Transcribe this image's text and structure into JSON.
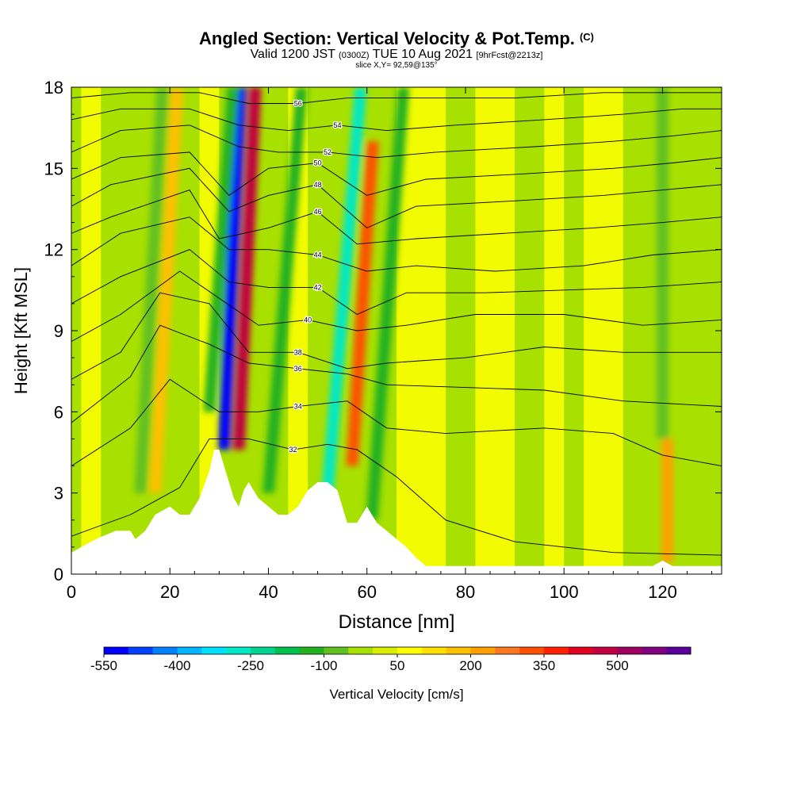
{
  "header": {
    "title_main": "Angled Section: Vertical Velocity & Pot.Temp.",
    "title_mark": "(C)",
    "valid_a": "Valid 1200 JST",
    "valid_b": "(0300Z)",
    "valid_c": "TUE 10 Aug 2021",
    "valid_d": "[9hrFcst@2213z]",
    "slice": "slice X,Y= 92,59@135°"
  },
  "chart_data": {
    "type": "heatmap",
    "xlabel": "Distance [nm]",
    "ylabel": "Height [Kft MSL]",
    "xlim": [
      0,
      132
    ],
    "ylim": [
      0,
      18
    ],
    "x_ticks": [
      0,
      20,
      40,
      60,
      80,
      100,
      120
    ],
    "y_ticks": [
      0,
      3,
      6,
      9,
      12,
      15,
      18
    ],
    "colorbar": {
      "label": "Vertical Velocity [cm/s]",
      "tick_labels": [
        "-550",
        "-400",
        "-250",
        "-100",
        "50",
        "200",
        "350",
        "500"
      ],
      "tick_values": [
        -550,
        -400,
        -250,
        -100,
        50,
        200,
        350,
        500
      ],
      "colors": [
        "#0000ff",
        "#0040ff",
        "#0080ff",
        "#00b4ff",
        "#00e0ff",
        "#00e8c8",
        "#00d290",
        "#00c050",
        "#20b020",
        "#60c020",
        "#a8e000",
        "#d8f000",
        "#ffff00",
        "#ffe000",
        "#ffc000",
        "#ffa000",
        "#ff7820",
        "#ff5000",
        "#ff2000",
        "#e00020",
        "#c00040",
        "#a00060",
        "#800080",
        "#5a009a"
      ]
    },
    "terrain_profile": [
      [
        0,
        0.8
      ],
      [
        2,
        1.0
      ],
      [
        5,
        1.3
      ],
      [
        9,
        1.6
      ],
      [
        12,
        1.6
      ],
      [
        13,
        1.3
      ],
      [
        15,
        1.6
      ],
      [
        17,
        2.2
      ],
      [
        20,
        2.5
      ],
      [
        22,
        2.2
      ],
      [
        24,
        2.2
      ],
      [
        26,
        2.8
      ],
      [
        28,
        3.8
      ],
      [
        29,
        4.6
      ],
      [
        30,
        4.6
      ],
      [
        31,
        4.0
      ],
      [
        32,
        3.4
      ],
      [
        33,
        2.8
      ],
      [
        34,
        2.5
      ],
      [
        35,
        3.1
      ],
      [
        36,
        3.4
      ],
      [
        37,
        3.1
      ],
      [
        38,
        2.8
      ],
      [
        40,
        2.5
      ],
      [
        42,
        2.2
      ],
      [
        44,
        2.2
      ],
      [
        46,
        2.5
      ],
      [
        48,
        3.1
      ],
      [
        50,
        3.4
      ],
      [
        52,
        3.4
      ],
      [
        54,
        3.1
      ],
      [
        55,
        2.5
      ],
      [
        56,
        1.9
      ],
      [
        58,
        1.9
      ],
      [
        59,
        2.2
      ],
      [
        60,
        2.5
      ],
      [
        61,
        2.2
      ],
      [
        62,
        1.9
      ],
      [
        64,
        1.6
      ],
      [
        66,
        1.3
      ],
      [
        68,
        1.0
      ],
      [
        70,
        0.6
      ],
      [
        72,
        0.3
      ],
      [
        80,
        0.3
      ],
      [
        118,
        0.3
      ],
      [
        120,
        0.5
      ],
      [
        122,
        0.3
      ],
      [
        132,
        0.3
      ]
    ],
    "velocity_features": [
      {
        "x": 31,
        "y_top": 18,
        "y_bottom": 4.6,
        "value": -550,
        "slope": -0.25
      },
      {
        "x": 34,
        "y_top": 18,
        "y_bottom": 4.6,
        "value": 500,
        "slope": -0.25
      },
      {
        "x": 52,
        "y_top": 18,
        "y_bottom": 3.0,
        "value": -300,
        "slope": -0.45
      },
      {
        "x": 57,
        "y_top": 16,
        "y_bottom": 4.0,
        "value": 350,
        "slope": -0.35
      },
      {
        "x": 28,
        "y_top": 18,
        "y_bottom": 6.0,
        "value": -150,
        "slope": -0.4
      },
      {
        "x": 40,
        "y_top": 18,
        "y_bottom": 3.0,
        "value": -130,
        "slope": -0.45
      },
      {
        "x": 61,
        "y_top": 18,
        "y_bottom": 2.0,
        "value": -120,
        "slope": -0.4
      },
      {
        "x": 17,
        "y_top": 18,
        "y_bottom": 3.0,
        "value": 200,
        "slope": -0.3
      },
      {
        "x": 14,
        "y_top": 18,
        "y_bottom": 3.0,
        "value": -90,
        "slope": -0.3
      },
      {
        "x": 121,
        "y_top": 5.0,
        "y_bottom": 0.4,
        "value": 250,
        "slope": 0.0
      },
      {
        "x": 120,
        "y_top": 18,
        "y_bottom": 5.0,
        "value": -90,
        "slope": 0.0
      }
    ],
    "isentropes": [
      {
        "theta": 32,
        "label": "32",
        "points": [
          [
            0,
            1.4
          ],
          [
            12,
            2.2
          ],
          [
            22,
            3.2
          ],
          [
            28,
            5.0
          ],
          [
            36,
            5.0
          ],
          [
            45,
            4.6
          ],
          [
            52,
            4.8
          ],
          [
            58,
            4.6
          ],
          [
            66,
            3.6
          ],
          [
            76,
            2.0
          ],
          [
            90,
            1.2
          ],
          [
            110,
            0.8
          ],
          [
            132,
            0.7
          ]
        ]
      },
      {
        "theta": 34,
        "label": "34",
        "points": [
          [
            0,
            4.0
          ],
          [
            12,
            5.4
          ],
          [
            20,
            7.2
          ],
          [
            30,
            6.0
          ],
          [
            38,
            6.0
          ],
          [
            46,
            6.2
          ],
          [
            56,
            6.4
          ],
          [
            64,
            5.4
          ],
          [
            76,
            5.2
          ],
          [
            96,
            5.4
          ],
          [
            110,
            5.2
          ],
          [
            120,
            4.4
          ],
          [
            132,
            4.0
          ]
        ]
      },
      {
        "theta": 36,
        "label": "36",
        "points": [
          [
            0,
            5.6
          ],
          [
            12,
            7.3
          ],
          [
            18,
            9.2
          ],
          [
            28,
            8.5
          ],
          [
            36,
            7.8
          ],
          [
            46,
            7.6
          ],
          [
            56,
            7.4
          ],
          [
            64,
            7.0
          ],
          [
            80,
            6.9
          ],
          [
            96,
            6.8
          ],
          [
            112,
            6.4
          ],
          [
            132,
            6.2
          ]
        ]
      },
      {
        "theta": 38,
        "label": "38",
        "points": [
          [
            0,
            7.2
          ],
          [
            10,
            8.2
          ],
          [
            18,
            10.4
          ],
          [
            28,
            10.0
          ],
          [
            36,
            8.2
          ],
          [
            46,
            8.2
          ],
          [
            56,
            7.6
          ],
          [
            64,
            7.8
          ],
          [
            80,
            8.0
          ],
          [
            96,
            8.4
          ],
          [
            112,
            8.2
          ],
          [
            132,
            8.2
          ]
        ]
      },
      {
        "theta": 40,
        "label": "40",
        "points": [
          [
            0,
            8.6
          ],
          [
            10,
            9.6
          ],
          [
            22,
            11.2
          ],
          [
            30,
            10.2
          ],
          [
            38,
            9.2
          ],
          [
            48,
            9.4
          ],
          [
            58,
            9.0
          ],
          [
            68,
            9.2
          ],
          [
            82,
            9.6
          ],
          [
            100,
            9.6
          ],
          [
            116,
            9.2
          ],
          [
            132,
            9.4
          ]
        ]
      },
      {
        "theta": 42,
        "label": "42",
        "points": [
          [
            0,
            10.0
          ],
          [
            10,
            11.0
          ],
          [
            24,
            12.0
          ],
          [
            32,
            10.8
          ],
          [
            40,
            10.6
          ],
          [
            50,
            10.6
          ],
          [
            58,
            9.6
          ],
          [
            68,
            10.4
          ],
          [
            84,
            10.4
          ],
          [
            100,
            10.5
          ],
          [
            116,
            10.6
          ],
          [
            132,
            10.8
          ]
        ]
      },
      {
        "theta": 44,
        "label": "44",
        "points": [
          [
            0,
            11.4
          ],
          [
            10,
            12.6
          ],
          [
            24,
            13.2
          ],
          [
            32,
            12.0
          ],
          [
            40,
            12.0
          ],
          [
            50,
            11.8
          ],
          [
            60,
            11.2
          ],
          [
            70,
            11.4
          ],
          [
            86,
            11.2
          ],
          [
            104,
            11.4
          ],
          [
            118,
            11.8
          ],
          [
            132,
            12.0
          ]
        ]
      },
      {
        "theta": 46,
        "label": "46",
        "points": [
          [
            0,
            12.6
          ],
          [
            8,
            13.2
          ],
          [
            24,
            14.2
          ],
          [
            30,
            12.4
          ],
          [
            40,
            12.8
          ],
          [
            50,
            13.4
          ],
          [
            58,
            12.2
          ],
          [
            70,
            12.4
          ],
          [
            88,
            12.6
          ],
          [
            106,
            12.8
          ],
          [
            120,
            13.0
          ],
          [
            132,
            13.2
          ]
        ]
      },
      {
        "theta": 48,
        "label": "48",
        "points": [
          [
            0,
            13.6
          ],
          [
            8,
            14.4
          ],
          [
            24,
            15.0
          ],
          [
            32,
            13.4
          ],
          [
            40,
            14.0
          ],
          [
            50,
            14.4
          ],
          [
            60,
            12.8
          ],
          [
            70,
            13.6
          ],
          [
            90,
            13.8
          ],
          [
            108,
            14.0
          ],
          [
            120,
            14.2
          ],
          [
            132,
            14.4
          ]
        ]
      },
      {
        "theta": 50,
        "label": "50",
        "points": [
          [
            0,
            14.6
          ],
          [
            10,
            15.4
          ],
          [
            24,
            15.6
          ],
          [
            32,
            14.0
          ],
          [
            40,
            15.0
          ],
          [
            50,
            15.2
          ],
          [
            60,
            14.0
          ],
          [
            72,
            14.6
          ],
          [
            92,
            14.8
          ],
          [
            110,
            15.0
          ],
          [
            122,
            15.2
          ],
          [
            132,
            15.4
          ]
        ]
      },
      {
        "theta": 52,
        "label": "52",
        "points": [
          [
            0,
            15.6
          ],
          [
            10,
            16.4
          ],
          [
            24,
            16.6
          ],
          [
            34,
            15.8
          ],
          [
            42,
            15.6
          ],
          [
            52,
            15.6
          ],
          [
            62,
            15.4
          ],
          [
            74,
            15.6
          ],
          [
            94,
            15.8
          ],
          [
            110,
            16.0
          ],
          [
            122,
            16.2
          ],
          [
            132,
            16.4
          ]
        ]
      },
      {
        "theta": 54,
        "label": "54",
        "points": [
          [
            0,
            16.8
          ],
          [
            10,
            17.2
          ],
          [
            24,
            17.2
          ],
          [
            34,
            16.6
          ],
          [
            44,
            16.4
          ],
          [
            54,
            16.6
          ],
          [
            64,
            16.4
          ],
          [
            78,
            16.6
          ],
          [
            96,
            16.8
          ],
          [
            112,
            17.0
          ],
          [
            124,
            17.2
          ],
          [
            132,
            17.2
          ]
        ]
      },
      {
        "theta": 56,
        "label": "56",
        "points": [
          [
            0,
            17.6
          ],
          [
            12,
            17.8
          ],
          [
            26,
            17.8
          ],
          [
            36,
            17.4
          ],
          [
            46,
            17.4
          ],
          [
            56,
            17.6
          ],
          [
            70,
            17.6
          ],
          [
            90,
            17.6
          ],
          [
            108,
            17.8
          ],
          [
            132,
            17.8
          ]
        ]
      }
    ]
  }
}
